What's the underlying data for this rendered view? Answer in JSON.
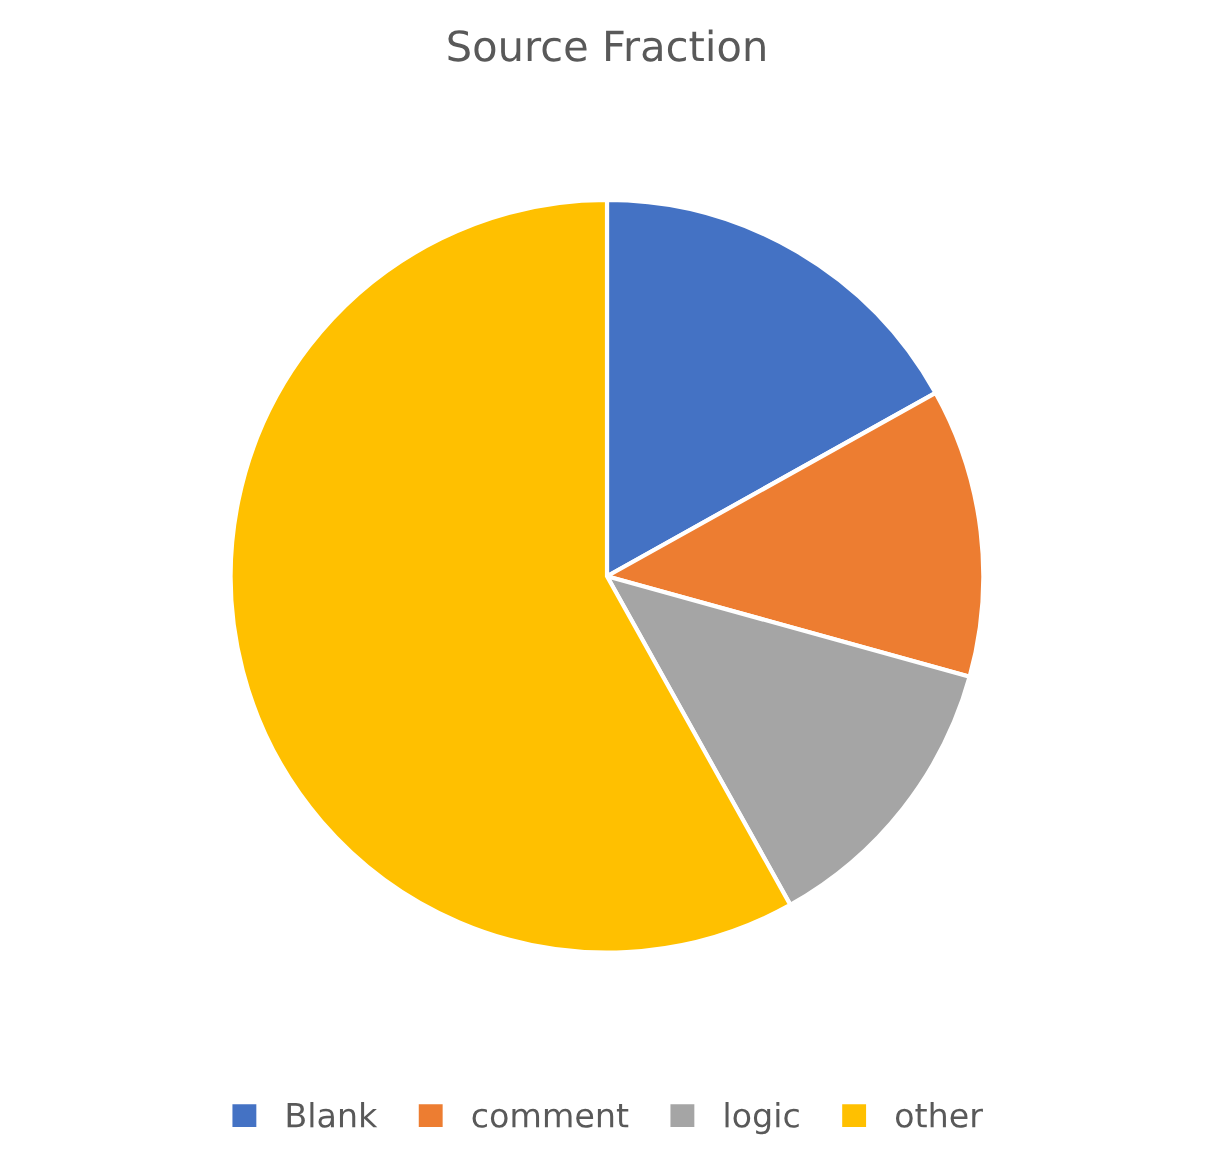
{
  "chart_data": {
    "type": "pie",
    "title": "Source Fraction",
    "categories": [
      "Blank",
      "comment",
      "logic",
      "other"
    ],
    "values": [
      16.9,
      12.4,
      12.6,
      58.1
    ],
    "colors": [
      "#4472c4",
      "#ed7d31",
      "#a5a5a5",
      "#ffc000"
    ],
    "legend": "bottom"
  }
}
